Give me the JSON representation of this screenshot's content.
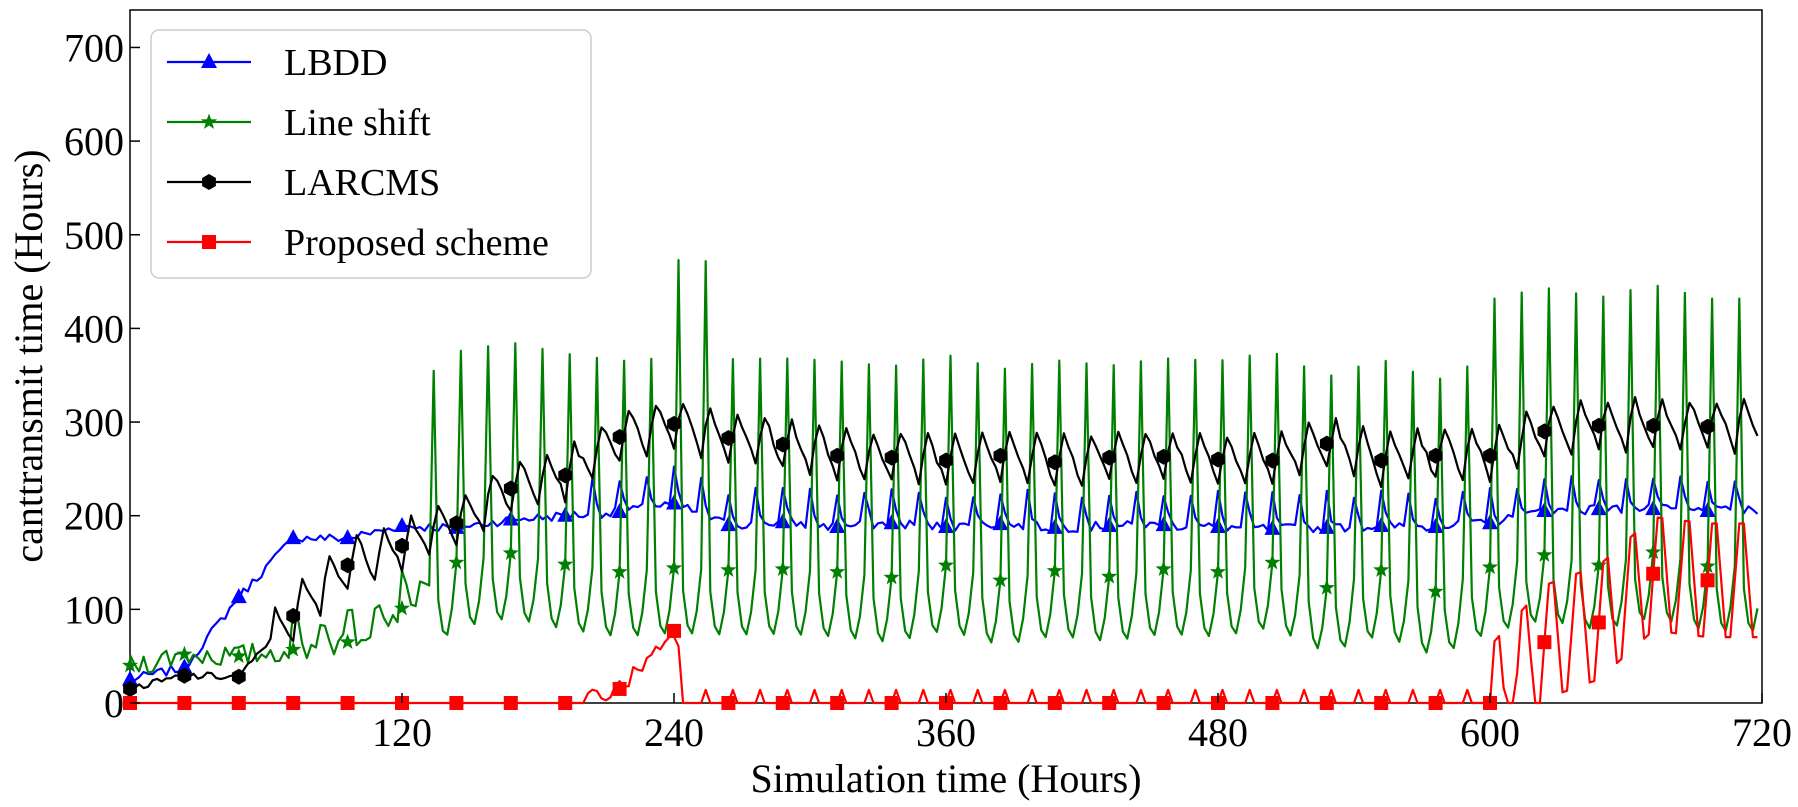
{
  "chart_data": {
    "type": "line",
    "title": "",
    "xlabel": "Simulation time (Hours)",
    "ylabel": "canttransmit time (Hours)",
    "xlim": [
      0,
      720
    ],
    "ylim": [
      0,
      740
    ],
    "xticks": [
      120,
      240,
      360,
      480,
      600,
      720
    ],
    "yticks": [
      0,
      100,
      200,
      300,
      400,
      500,
      600,
      700
    ],
    "grid": false,
    "legend_position": "top-left",
    "series": [
      {
        "name": "LBDD",
        "color": "#0000ff",
        "marker": "triangle",
        "x": [
          0,
          24,
          48,
          72,
          96,
          120,
          144,
          168,
          192,
          216,
          240,
          264,
          288,
          312,
          336,
          360,
          384,
          408,
          432,
          456,
          480,
          504,
          528,
          552,
          576,
          600,
          624,
          648,
          672,
          696
        ],
        "values": [
          25,
          38,
          113,
          176,
          176,
          189,
          187,
          196,
          200,
          204,
          213,
          190,
          193,
          188,
          192,
          188,
          191,
          187,
          189,
          190,
          188,
          186,
          187,
          189,
          188,
          192,
          205,
          207,
          207,
          205
        ]
      },
      {
        "name": "Line shift",
        "color": "#008000",
        "marker": "star",
        "x": [
          0,
          24,
          48,
          72,
          96,
          120,
          144,
          168,
          192,
          216,
          240,
          264,
          288,
          312,
          336,
          360,
          384,
          408,
          432,
          456,
          480,
          504,
          528,
          552,
          576,
          600,
          624,
          648,
          672,
          696
        ],
        "values": [
          40,
          52,
          50,
          57,
          65,
          101,
          150,
          160,
          148,
          140,
          144,
          142,
          143,
          140,
          134,
          147,
          131,
          141,
          135,
          143,
          140,
          150,
          123,
          142,
          119,
          145,
          158,
          147,
          161,
          146
        ]
      },
      {
        "name": "LARCMS",
        "color": "#000000",
        "marker": "hexagon",
        "x": [
          0,
          24,
          48,
          72,
          96,
          120,
          144,
          168,
          192,
          216,
          240,
          264,
          288,
          312,
          336,
          360,
          384,
          408,
          432,
          456,
          480,
          504,
          528,
          552,
          576,
          600,
          624,
          648,
          672,
          696
        ],
        "values": [
          15,
          29,
          28,
          93,
          147,
          168,
          192,
          229,
          243,
          284,
          298,
          283,
          276,
          264,
          262,
          259,
          264,
          257,
          262,
          263,
          260,
          259,
          277,
          259,
          264,
          264,
          290,
          296,
          296,
          295
        ]
      },
      {
        "name": "Proposed scheme",
        "color": "#ff0000",
        "marker": "square",
        "x": [
          0,
          24,
          48,
          72,
          96,
          120,
          144,
          168,
          192,
          216,
          240,
          264,
          288,
          312,
          336,
          360,
          384,
          408,
          432,
          456,
          480,
          504,
          528,
          552,
          576,
          600,
          624,
          648,
          672,
          696
        ],
        "values": [
          0,
          0,
          0,
          0,
          0,
          0,
          0,
          0,
          0,
          15,
          77,
          0,
          0,
          0,
          0,
          0,
          0,
          0,
          0,
          0,
          0,
          0,
          0,
          0,
          0,
          0,
          65,
          86,
          138,
          131
        ]
      }
    ]
  }
}
